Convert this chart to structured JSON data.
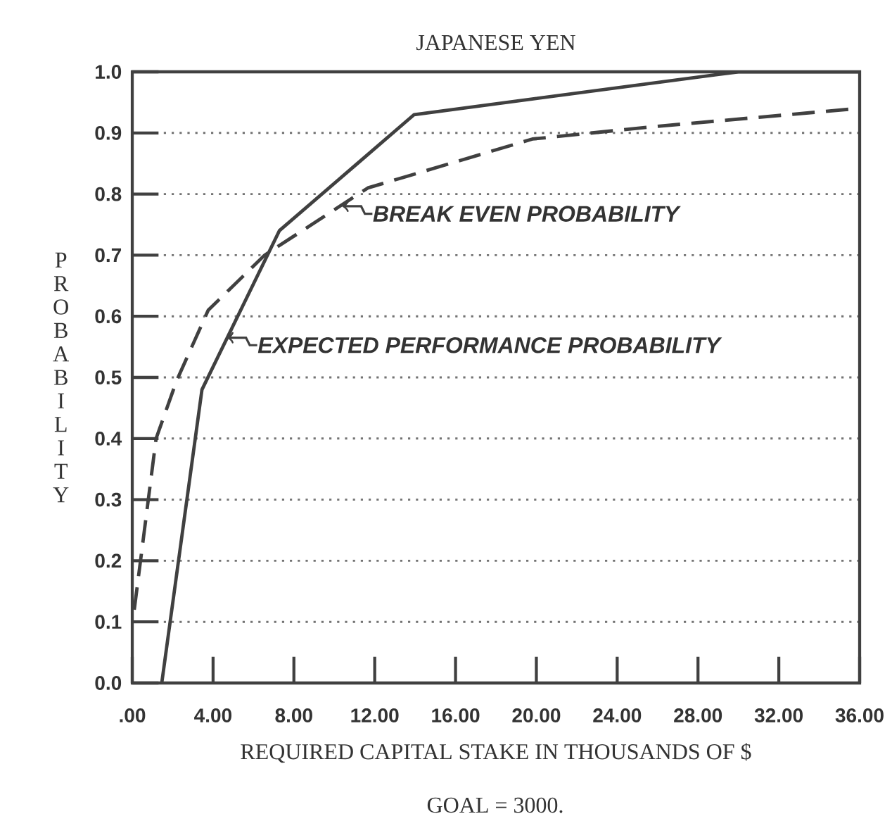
{
  "chart_data": {
    "type": "line",
    "title": "JAPANESE YEN",
    "xlabel": "REQUIRED CAPITAL STAKE IN THOUSANDS OF $",
    "ylabel": "PROBABILITY",
    "annotations": [
      {
        "text": "BREAK EVEN PROBABILITY",
        "x": 10.4,
        "y": 0.78
      },
      {
        "text": "EXPECTED PERFORMANCE PROBABILITY",
        "x": 4.7,
        "y": 0.565
      },
      "GOAL = 3000."
    ],
    "xlim": [
      0,
      36
    ],
    "ylim": [
      0,
      1
    ],
    "xticks": [
      {
        "value": 0,
        "label": ".00"
      },
      {
        "value": 4,
        "label": "4.00"
      },
      {
        "value": 8,
        "label": "8.00"
      },
      {
        "value": 12,
        "label": "12.00"
      },
      {
        "value": 16,
        "label": "16.00"
      },
      {
        "value": 20,
        "label": "20.00"
      },
      {
        "value": 24,
        "label": "24.00"
      },
      {
        "value": 28,
        "label": "28.00"
      },
      {
        "value": 32,
        "label": "32.00"
      },
      {
        "value": 36,
        "label": "36.00"
      }
    ],
    "yticks": [
      {
        "value": 0,
        "label": "0.0"
      },
      0.1,
      0.2,
      0.3,
      0.4,
      0.5,
      0.6,
      0.7,
      0.8,
      0.9,
      {
        "value": 1,
        "label": "1.0"
      }
    ],
    "grid": "y",
    "marker": "none",
    "series": [
      {
        "color": "#404040",
        "line_style": "solid",
        "x": [
          1.46,
          3.45,
          7.28,
          13.95,
          30.0,
          36.0
        ],
        "values": [
          0,
          0.48,
          0.74,
          0.93,
          1.0,
          1.0
        ]
      },
      {
        "color": "#404040",
        "line_style": "dashed",
        "x": [
          0.1,
          1.18,
          2.2,
          3.76,
          6.55,
          11.66,
          19.8,
          25.7,
          35.9
        ],
        "values": [
          0.12,
          0.4,
          0.495,
          0.61,
          0.7,
          0.81,
          0.89,
          0.91,
          0.94
        ]
      }
    ]
  }
}
